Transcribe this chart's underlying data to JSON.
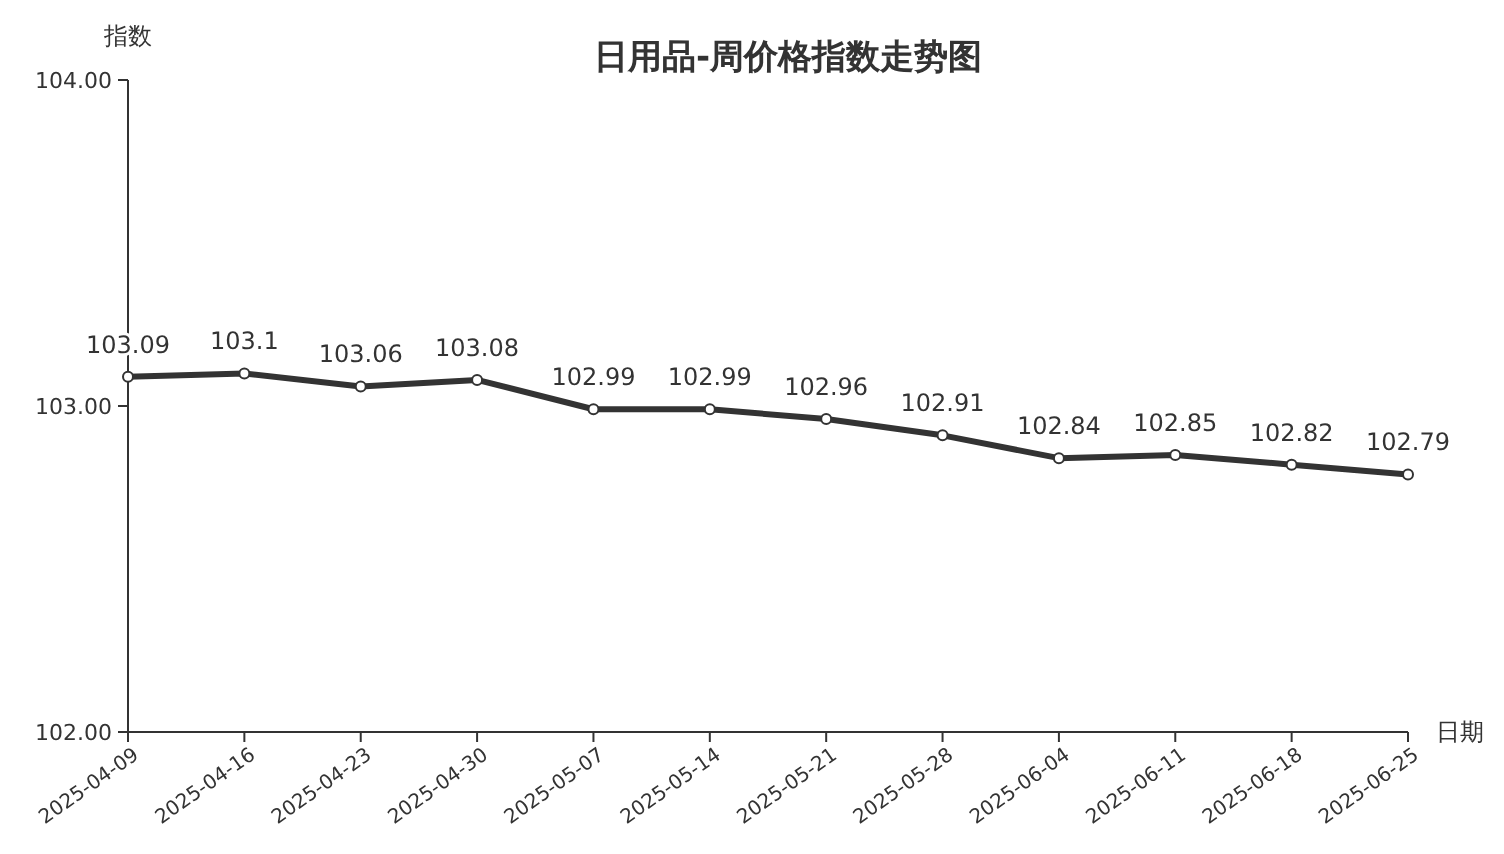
{
  "chart_data": {
    "type": "line",
    "title": "日用品-周价格指数走势图",
    "xlabel": "日期",
    "ylabel": "指数",
    "categories": [
      "2025-04-09",
      "2025-04-16",
      "2025-04-23",
      "2025-04-30",
      "2025-05-07",
      "2025-05-14",
      "2025-05-21",
      "2025-05-28",
      "2025-06-04",
      "2025-06-11",
      "2025-06-18",
      "2025-06-25"
    ],
    "series": [
      {
        "color": "#333333",
        "values": [
          103.09,
          103.1,
          103.06,
          103.08,
          102.99,
          102.99,
          102.96,
          102.91,
          102.84,
          102.85,
          102.82,
          102.79
        ]
      }
    ],
    "ylim": [
      102,
      104
    ],
    "yticks": [
      {
        "value": 102,
        "label": "102.00"
      },
      {
        "value": 103,
        "label": "103.00"
      },
      {
        "value": 104,
        "label": "104.00"
      }
    ],
    "data_labels": true,
    "marker": "circle",
    "line_style": "solid",
    "grid": false
  }
}
